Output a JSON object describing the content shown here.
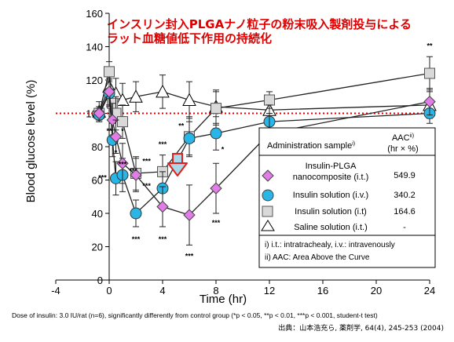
{
  "title_line1": "インスリン封入PLGAナノ粒子の粉末吸入製剤投与による",
  "title_line2": "ラット血糖値低下作用の持続化",
  "chart_data": {
    "type": "line",
    "xlabel": "Time (hr)",
    "ylabel": "Blood glucose level (%)",
    "xlim": [
      -4,
      24
    ],
    "ylim": [
      0,
      160
    ],
    "x_ticks": [
      -4,
      0,
      4,
      8,
      12,
      16,
      20,
      24
    ],
    "y_ticks": [
      0,
      20,
      40,
      60,
      80,
      100,
      120,
      140,
      160
    ],
    "grid": false,
    "reference_line": {
      "y": 100,
      "color": "#e00000",
      "style": "dotted"
    },
    "series": [
      {
        "name": "Saline solution (i.t.)",
        "marker": "triangle",
        "color": "#ffffff",
        "x": [
          -0.75,
          0,
          0.5,
          1,
          2,
          4,
          6,
          8,
          12,
          24
        ],
        "y": [
          101,
          116,
          112,
          108,
          110,
          113,
          108,
          104,
          102,
          105
        ],
        "err": [
          6,
          8,
          9,
          10,
          9,
          10,
          11,
          10,
          9,
          8
        ]
      },
      {
        "name": "Insulin solution (i.t)",
        "marker": "square",
        "color": "#d9d9d9",
        "x": [
          -0.75,
          0,
          0.25,
          0.5,
          1,
          2,
          4,
          6,
          8,
          12,
          24
        ],
        "y": [
          100,
          125,
          106,
          100,
          95,
          64,
          65,
          86,
          103,
          108,
          124
        ],
        "err": [
          4,
          6,
          8,
          10,
          10,
          10,
          10,
          12,
          10,
          5,
          10
        ]
      },
      {
        "name": "Insulin solution (i.v.)",
        "marker": "circle",
        "color": "#29b6e6",
        "x": [
          -0.75,
          0,
          0.25,
          0.5,
          1,
          2,
          4,
          6,
          8,
          12,
          24
        ],
        "y": [
          99,
          112,
          84,
          61,
          63,
          40,
          55,
          85,
          88,
          95,
          100
        ],
        "err": [
          4,
          8,
          10,
          10,
          10,
          8,
          10,
          10,
          10,
          10,
          6
        ]
      },
      {
        "name": "Insulin-PLGA nanocomposite (i.t.)",
        "marker": "diamond",
        "color": "#e07de6",
        "x": [
          -0.75,
          0,
          0.25,
          0.5,
          1,
          2,
          4,
          6,
          8,
          12,
          24
        ],
        "y": [
          100,
          113,
          96,
          86,
          70,
          63,
          44,
          39,
          55,
          88,
          107
        ],
        "err": [
          4,
          8,
          10,
          10,
          12,
          10,
          12,
          18,
          15,
          12,
          8
        ]
      }
    ],
    "significance_labels": [
      {
        "x": 0,
        "y": 88,
        "text": "**"
      },
      {
        "x": -0.5,
        "y": 60,
        "text": "***"
      },
      {
        "x": 0.5,
        "y": 75,
        "text": "*"
      },
      {
        "x": 1,
        "y": 88,
        "text": "*"
      },
      {
        "x": 1,
        "y": 68,
        "text": "***"
      },
      {
        "x": 1.8,
        "y": 64,
        "text": "***"
      },
      {
        "x": 2.8,
        "y": 70,
        "text": "***"
      },
      {
        "x": 2.8,
        "y": 55,
        "text": "***"
      },
      {
        "x": 2,
        "y": 23,
        "text": "***"
      },
      {
        "x": 4,
        "y": 80,
        "text": "***"
      },
      {
        "x": 4,
        "y": 23,
        "text": "***"
      },
      {
        "x": 5.4,
        "y": 91,
        "text": "**"
      },
      {
        "x": 6,
        "y": 13,
        "text": "***"
      },
      {
        "x": 8.5,
        "y": 77,
        "text": "*"
      },
      {
        "x": 8,
        "y": 33,
        "text": "***"
      },
      {
        "x": 12,
        "y": 71,
        "text": "*"
      },
      {
        "x": 24,
        "y": 139,
        "text": "**"
      }
    ]
  },
  "legend": {
    "col_sample": "Administration sample",
    "col_sample_sup": "i)",
    "col_aac": "AAC",
    "col_aac_sup": "ii)",
    "col_aac_unit": "(hr × %)",
    "rows": [
      {
        "line1": "Insulin-PLGA",
        "line2": "nanocomposite (i.t.)",
        "aac": "549.9"
      },
      {
        "line1": "Insulin solution (i.v.)",
        "line2": "",
        "aac": "340.2"
      },
      {
        "line1": "Insulin solution (i.t)",
        "line2": "",
        "aac": "164.6"
      },
      {
        "line1": "Saline solution (i.t.)",
        "line2": "",
        "aac": "-"
      }
    ],
    "footnote1": "i)  i.t.: intratrachealy, i.v.: intravenously",
    "footnote2": "ii) AAC: Area Above the Curve"
  },
  "dose_note": "Dose of insulin: 3.0 IU/rat (n=6), significantly differently from control group (*p < 0.05, **p < 0.01, ***p < 0.001, student-t test)",
  "source_note": "出典：山本浩充ら, 薬剤学, 64(4), 245-253  (2004)"
}
